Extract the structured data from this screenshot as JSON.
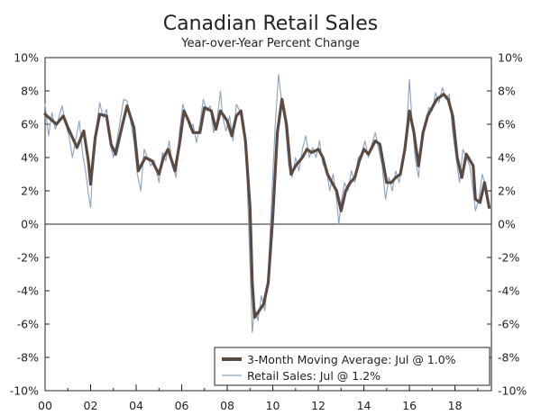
{
  "chart_data": {
    "type": "line",
    "title": "Canadian Retail Sales",
    "subtitle": "Year-over-Year Percent Change",
    "xlabel": "",
    "ylabel": "",
    "x_range": [
      2000,
      2019.6
    ],
    "ylim": [
      -10,
      10
    ],
    "y_ticks": [
      10,
      8,
      6,
      4,
      2,
      0,
      -2,
      -4,
      -6,
      -8,
      -10
    ],
    "y_tick_labels": [
      "10%",
      "8%",
      "6%",
      "4%",
      "2%",
      "0%",
      "-2%",
      "-4%",
      "-6%",
      "-8%",
      "-10%"
    ],
    "x_ticks": [
      2000,
      2002,
      2004,
      2006,
      2008,
      2010,
      2012,
      2014,
      2016,
      2018
    ],
    "x_tick_labels": [
      "00",
      "02",
      "04",
      "06",
      "08",
      "10",
      "12",
      "14",
      "16",
      "18"
    ],
    "legend_position": "bottom-right",
    "series": [
      {
        "name": "3-Month Moving Average: Jul @ 1.0%",
        "color": "#5a4a42",
        "points": [
          [
            2000.0,
            6.6
          ],
          [
            2000.5,
            6.0
          ],
          [
            2000.8,
            6.5
          ],
          [
            2001.0,
            5.8
          ],
          [
            2001.4,
            4.6
          ],
          [
            2001.7,
            5.6
          ],
          [
            2001.9,
            3.8
          ],
          [
            2002.0,
            2.4
          ],
          [
            2002.2,
            5.2
          ],
          [
            2002.4,
            6.6
          ],
          [
            2002.7,
            6.5
          ],
          [
            2002.9,
            4.8
          ],
          [
            2003.1,
            4.2
          ],
          [
            2003.4,
            6.0
          ],
          [
            2003.6,
            7.1
          ],
          [
            2003.9,
            5.8
          ],
          [
            2004.1,
            3.2
          ],
          [
            2004.4,
            4.0
          ],
          [
            2004.7,
            3.8
          ],
          [
            2005.0,
            3.0
          ],
          [
            2005.2,
            4.0
          ],
          [
            2005.4,
            4.5
          ],
          [
            2005.7,
            3.2
          ],
          [
            2005.9,
            4.8
          ],
          [
            2006.1,
            6.8
          ],
          [
            2006.3,
            6.2
          ],
          [
            2006.5,
            5.5
          ],
          [
            2006.8,
            5.5
          ],
          [
            2007.0,
            7.0
          ],
          [
            2007.3,
            6.8
          ],
          [
            2007.5,
            5.7
          ],
          [
            2007.7,
            6.8
          ],
          [
            2008.0,
            6.2
          ],
          [
            2008.2,
            5.3
          ],
          [
            2008.4,
            6.5
          ],
          [
            2008.6,
            6.8
          ],
          [
            2008.8,
            5.0
          ],
          [
            2009.0,
            1.0
          ],
          [
            2009.1,
            -3.5
          ],
          [
            2009.2,
            -5.6
          ],
          [
            2009.4,
            -5.2
          ],
          [
            2009.6,
            -4.8
          ],
          [
            2009.8,
            -3.5
          ],
          [
            2010.0,
            0.5
          ],
          [
            2010.2,
            5.5
          ],
          [
            2010.4,
            7.5
          ],
          [
            2010.6,
            6.0
          ],
          [
            2010.8,
            3.0
          ],
          [
            2011.0,
            3.5
          ],
          [
            2011.3,
            4.0
          ],
          [
            2011.5,
            4.5
          ],
          [
            2011.7,
            4.3
          ],
          [
            2012.0,
            4.5
          ],
          [
            2012.2,
            4.0
          ],
          [
            2012.4,
            3.0
          ],
          [
            2012.6,
            2.5
          ],
          [
            2012.8,
            2.0
          ],
          [
            2013.0,
            0.8
          ],
          [
            2013.2,
            2.0
          ],
          [
            2013.4,
            2.5
          ],
          [
            2013.6,
            2.8
          ],
          [
            2013.8,
            3.8
          ],
          [
            2014.0,
            4.5
          ],
          [
            2014.2,
            4.2
          ],
          [
            2014.5,
            5.0
          ],
          [
            2014.7,
            4.8
          ],
          [
            2015.0,
            2.5
          ],
          [
            2015.2,
            2.5
          ],
          [
            2015.4,
            2.8
          ],
          [
            2015.6,
            3.0
          ],
          [
            2015.8,
            4.5
          ],
          [
            2016.0,
            6.8
          ],
          [
            2016.2,
            5.5
          ],
          [
            2016.4,
            3.5
          ],
          [
            2016.6,
            5.5
          ],
          [
            2016.8,
            6.5
          ],
          [
            2017.0,
            7.0
          ],
          [
            2017.2,
            7.5
          ],
          [
            2017.5,
            7.8
          ],
          [
            2017.7,
            7.5
          ],
          [
            2017.9,
            6.5
          ],
          [
            2018.1,
            4.0
          ],
          [
            2018.3,
            2.8
          ],
          [
            2018.5,
            4.2
          ],
          [
            2018.8,
            3.5
          ],
          [
            2018.9,
            1.5
          ],
          [
            2019.1,
            1.3
          ],
          [
            2019.3,
            2.5
          ],
          [
            2019.5,
            1.0
          ]
        ]
      },
      {
        "name": "Retail Sales: Jul @ 1.2%",
        "color": "#8aa0c0",
        "points": [
          [
            2000.0,
            7.2
          ],
          [
            2000.15,
            5.3
          ],
          [
            2000.3,
            6.7
          ],
          [
            2000.45,
            5.7
          ],
          [
            2000.6,
            6.4
          ],
          [
            2000.75,
            7.1
          ],
          [
            2000.9,
            6.0
          ],
          [
            2001.05,
            5.3
          ],
          [
            2001.2,
            4.0
          ],
          [
            2001.35,
            5.1
          ],
          [
            2001.5,
            6.2
          ],
          [
            2001.65,
            4.2
          ],
          [
            2001.8,
            3.0
          ],
          [
            2001.9,
            1.8
          ],
          [
            2002.0,
            1.0
          ],
          [
            2002.1,
            3.5
          ],
          [
            2002.25,
            5.8
          ],
          [
            2002.4,
            7.3
          ],
          [
            2002.55,
            6.4
          ],
          [
            2002.7,
            6.9
          ],
          [
            2002.85,
            4.8
          ],
          [
            2003.0,
            4.0
          ],
          [
            2003.15,
            5.0
          ],
          [
            2003.3,
            6.2
          ],
          [
            2003.45,
            7.5
          ],
          [
            2003.6,
            7.4
          ],
          [
            2003.75,
            6.2
          ],
          [
            2003.9,
            5.0
          ],
          [
            2004.05,
            3.0
          ],
          [
            2004.2,
            2.0
          ],
          [
            2004.35,
            4.5
          ],
          [
            2004.5,
            4.0
          ],
          [
            2004.65,
            3.5
          ],
          [
            2004.8,
            3.8
          ],
          [
            2005.0,
            2.5
          ],
          [
            2005.15,
            4.3
          ],
          [
            2005.3,
            3.8
          ],
          [
            2005.45,
            5.0
          ],
          [
            2005.6,
            3.5
          ],
          [
            2005.75,
            2.8
          ],
          [
            2005.9,
            5.5
          ],
          [
            2006.05,
            7.2
          ],
          [
            2006.2,
            6.5
          ],
          [
            2006.35,
            5.8
          ],
          [
            2006.5,
            6.0
          ],
          [
            2006.65,
            4.9
          ],
          [
            2006.8,
            6.0
          ],
          [
            2006.95,
            7.5
          ],
          [
            2007.1,
            6.8
          ],
          [
            2007.25,
            7.1
          ],
          [
            2007.4,
            5.5
          ],
          [
            2007.55,
            6.2
          ],
          [
            2007.7,
            8.0
          ],
          [
            2007.8,
            6.4
          ],
          [
            2007.95,
            5.6
          ],
          [
            2008.1,
            6.5
          ],
          [
            2008.25,
            5.0
          ],
          [
            2008.4,
            7.2
          ],
          [
            2008.55,
            6.8
          ],
          [
            2008.7,
            6.2
          ],
          [
            2008.85,
            3.5
          ],
          [
            2009.0,
            -2.5
          ],
          [
            2009.1,
            -6.5
          ],
          [
            2009.2,
            -5.0
          ],
          [
            2009.35,
            -5.8
          ],
          [
            2009.5,
            -4.3
          ],
          [
            2009.65,
            -5.2
          ],
          [
            2009.8,
            -3.0
          ],
          [
            2009.95,
            1.5
          ],
          [
            2010.1,
            5.8
          ],
          [
            2010.25,
            9.0
          ],
          [
            2010.4,
            7.2
          ],
          [
            2010.55,
            6.0
          ],
          [
            2010.7,
            3.5
          ],
          [
            2010.85,
            2.8
          ],
          [
            2011.0,
            4.0
          ],
          [
            2011.15,
            3.2
          ],
          [
            2011.3,
            4.5
          ],
          [
            2011.45,
            5.3
          ],
          [
            2011.6,
            4.0
          ],
          [
            2011.75,
            4.6
          ],
          [
            2011.9,
            4.0
          ],
          [
            2012.05,
            5.0
          ],
          [
            2012.2,
            3.6
          ],
          [
            2012.35,
            3.3
          ],
          [
            2012.5,
            2.0
          ],
          [
            2012.65,
            3.0
          ],
          [
            2012.8,
            1.5
          ],
          [
            2012.9,
            0.0
          ],
          [
            2013.0,
            1.3
          ],
          [
            2013.15,
            2.5
          ],
          [
            2013.3,
            2.0
          ],
          [
            2013.45,
            3.2
          ],
          [
            2013.6,
            2.5
          ],
          [
            2013.75,
            4.0
          ],
          [
            2013.9,
            4.2
          ],
          [
            2014.05,
            5.0
          ],
          [
            2014.2,
            4.0
          ],
          [
            2014.35,
            4.8
          ],
          [
            2014.5,
            5.5
          ],
          [
            2014.65,
            4.5
          ],
          [
            2014.8,
            3.5
          ],
          [
            2014.95,
            1.5
          ],
          [
            2015.1,
            2.8
          ],
          [
            2015.25,
            2.0
          ],
          [
            2015.4,
            3.2
          ],
          [
            2015.55,
            2.5
          ],
          [
            2015.7,
            3.8
          ],
          [
            2015.85,
            5.0
          ],
          [
            2016.0,
            8.7
          ],
          [
            2016.1,
            6.5
          ],
          [
            2016.25,
            4.0
          ],
          [
            2016.4,
            2.8
          ],
          [
            2016.55,
            5.5
          ],
          [
            2016.7,
            6.0
          ],
          [
            2016.85,
            7.0
          ],
          [
            2017.0,
            6.8
          ],
          [
            2017.15,
            7.9
          ],
          [
            2017.3,
            7.3
          ],
          [
            2017.45,
            8.2
          ],
          [
            2017.6,
            7.5
          ],
          [
            2017.75,
            7.8
          ],
          [
            2017.9,
            5.5
          ],
          [
            2018.05,
            4.0
          ],
          [
            2018.2,
            2.5
          ],
          [
            2018.35,
            4.5
          ],
          [
            2018.5,
            4.0
          ],
          [
            2018.65,
            3.5
          ],
          [
            2018.8,
            2.0
          ],
          [
            2018.9,
            0.8
          ],
          [
            2019.05,
            1.5
          ],
          [
            2019.2,
            3.0
          ],
          [
            2019.35,
            2.2
          ],
          [
            2019.5,
            1.2
          ]
        ]
      }
    ]
  }
}
